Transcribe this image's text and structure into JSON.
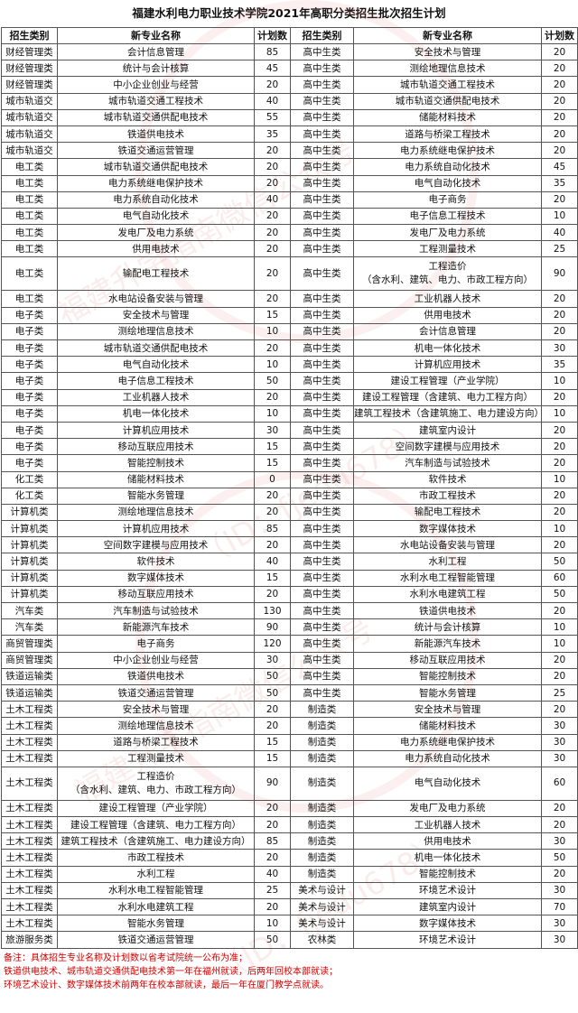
{
  "title": "福建水利电力职业技术学院2021年高职分类招生批次招生计划",
  "headers": [
    "招生类别",
    "新专业名称",
    "计划数",
    "招生类别",
    "新专业名称",
    "计划数"
  ],
  "rows": [
    {
      "c1": "财经管理类",
      "m1": "会计信息管理",
      "n1": "85",
      "c2": "高中生类",
      "m2": "安全技术与管理",
      "n2": "20"
    },
    {
      "c1": "财经管理类",
      "m1": "统计与会计核算",
      "n1": "45",
      "c2": "高中生类",
      "m2": "测绘地理信息技术",
      "n2": "20"
    },
    {
      "c1": "财经管理类",
      "m1": "中小企业创业与经营",
      "n1": "20",
      "c2": "高中生类",
      "m2": "城市轨道交通工程技术",
      "n2": "20"
    },
    {
      "c1": "城市轨道交",
      "m1": "城市轨道交通工程技术",
      "n1": "40",
      "c2": "高中生类",
      "m2": "城市轨道交通供配电技术",
      "n2": "20"
    },
    {
      "c1": "城市轨道交",
      "m1": "城市轨道交通供配电技术",
      "n1": "55",
      "c2": "高中生类",
      "m2": "储能材料技术",
      "n2": "20"
    },
    {
      "c1": "城市轨道交",
      "m1": "铁道供电技术",
      "n1": "35",
      "c2": "高中生类",
      "m2": "道路与桥梁工程技术",
      "n2": "20"
    },
    {
      "c1": "城市轨道交",
      "m1": "铁道交通运营管理",
      "n1": "20",
      "c2": "高中生类",
      "m2": "电力系统继电保护技术",
      "n2": "20"
    },
    {
      "c1": "电工类",
      "m1": "城市轨道交通供配电技术",
      "n1": "20",
      "c2": "高中生类",
      "m2": "电力系统自动化技术",
      "n2": "45"
    },
    {
      "c1": "电工类",
      "m1": "电力系统继电保护技术",
      "n1": "20",
      "c2": "高中生类",
      "m2": "电气自动化技术",
      "n2": "35"
    },
    {
      "c1": "电工类",
      "m1": "电力系统自动化技术",
      "n1": "40",
      "c2": "高中生类",
      "m2": "电子商务",
      "n2": "20"
    },
    {
      "c1": "电工类",
      "m1": "电气自动化技术",
      "n1": "20",
      "c2": "高中生类",
      "m2": "电子信息工程技术",
      "n2": "10"
    },
    {
      "c1": "电工类",
      "m1": "发电厂及电力系统",
      "n1": "20",
      "c2": "高中生类",
      "m2": "发电厂及电力系统",
      "n2": "40"
    },
    {
      "c1": "电工类",
      "m1": "供用电技术",
      "n1": "20",
      "c2": "高中生类",
      "m2": "工程测量技术",
      "n2": "25"
    },
    {
      "c1": "电工类",
      "m1": "输配电工程技术",
      "n1": "20",
      "c2": "高中生类",
      "m2": "工程造价\n（含水利、建筑、电力、市政工程方向）",
      "n2": "90",
      "tall": true
    },
    {
      "c1": "电工类",
      "m1": "水电站设备安装与管理",
      "n1": "20",
      "c2": "高中生类",
      "m2": "工业机器人技术",
      "n2": "20"
    },
    {
      "c1": "电子类",
      "m1": "安全技术与管理",
      "n1": "15",
      "c2": "高中生类",
      "m2": "供用电技术",
      "n2": "20"
    },
    {
      "c1": "电子类",
      "m1": "测绘地理信息技术",
      "n1": "10",
      "c2": "高中生类",
      "m2": "会计信息管理",
      "n2": "20"
    },
    {
      "c1": "电子类",
      "m1": "城市轨道交通供配电技术",
      "n1": "20",
      "c2": "高中生类",
      "m2": "机电一体化技术",
      "n2": "30"
    },
    {
      "c1": "电子类",
      "m1": "电气自动化技术",
      "n1": "10",
      "c2": "高中生类",
      "m2": "计算机应用技术",
      "n2": "35"
    },
    {
      "c1": "电子类",
      "m1": "电子信息工程技术",
      "n1": "50",
      "c2": "高中生类",
      "m2": "建设工程管理（产业学院）",
      "n2": "10"
    },
    {
      "c1": "电子类",
      "m1": "工业机器人技术",
      "n1": "20",
      "c2": "高中生类",
      "m2": "建设工程管理（含建筑、电力工程方向）",
      "n2": "20"
    },
    {
      "c1": "电子类",
      "m1": "机电一体化技术",
      "n1": "10",
      "c2": "高中生类",
      "m2": "建筑工程技术（含建筑施工、电力建设方向）",
      "n2": "10"
    },
    {
      "c1": "电子类",
      "m1": "计算机应用技术",
      "n1": "30",
      "c2": "高中生类",
      "m2": "建筑室内设计",
      "n2": "20"
    },
    {
      "c1": "电子类",
      "m1": "移动互联应用技术",
      "n1": "15",
      "c2": "高中生类",
      "m2": "空间数字建模与应用技术",
      "n2": "20"
    },
    {
      "c1": "电子类",
      "m1": "智能控制技术",
      "n1": "15",
      "c2": "高中生类",
      "m2": "汽车制造与试验技术",
      "n2": "20"
    },
    {
      "c1": "化工类",
      "m1": "储能材料技术",
      "n1": "0",
      "c2": "高中生类",
      "m2": "软件技术",
      "n2": "10"
    },
    {
      "c1": "化工类",
      "m1": "智能水务管理",
      "n1": "20",
      "c2": "高中生类",
      "m2": "市政工程技术",
      "n2": "20"
    },
    {
      "c1": "计算机类",
      "m1": "测绘地理信息技术",
      "n1": "20",
      "c2": "高中生类",
      "m2": "输配电工程技术",
      "n2": "20"
    },
    {
      "c1": "计算机类",
      "m1": "计算机应用技术",
      "n1": "85",
      "c2": "高中生类",
      "m2": "数字媒体技术",
      "n2": "10"
    },
    {
      "c1": "计算机类",
      "m1": "空间数字建模与应用技术",
      "n1": "20",
      "c2": "高中生类",
      "m2": "水电站设备安装与管理",
      "n2": "20"
    },
    {
      "c1": "计算机类",
      "m1": "软件技术",
      "n1": "40",
      "c2": "高中生类",
      "m2": "水利工程",
      "n2": "50"
    },
    {
      "c1": "计算机类",
      "m1": "数字媒体技术",
      "n1": "15",
      "c2": "高中生类",
      "m2": "水利水电工程智能管理",
      "n2": "60"
    },
    {
      "c1": "计算机类",
      "m1": "移动互联应用技术",
      "n1": "20",
      "c2": "高中生类",
      "m2": "水利水电建筑工程",
      "n2": "50"
    },
    {
      "c1": "汽车类",
      "m1": "汽车制造与试验技术",
      "n1": "130",
      "c2": "高中生类",
      "m2": "铁道供电技术",
      "n2": "20"
    },
    {
      "c1": "汽车类",
      "m1": "新能源汽车技术",
      "n1": "90",
      "c2": "高中生类",
      "m2": "统计与会计核算",
      "n2": "10"
    },
    {
      "c1": "商贸管理类",
      "m1": "电子商务",
      "n1": "120",
      "c2": "高中生类",
      "m2": "新能源汽车技术",
      "n2": "10"
    },
    {
      "c1": "商贸管理类",
      "m1": "中小企业创业与经营",
      "n1": "30",
      "c2": "高中生类",
      "m2": "移动互联应用技术",
      "n2": "20"
    },
    {
      "c1": "铁道运输类",
      "m1": "铁道供电技术",
      "n1": "50",
      "c2": "高中生类",
      "m2": "智能控制技术",
      "n2": "20"
    },
    {
      "c1": "铁道运输类",
      "m1": "铁道交通运营管理",
      "n1": "50",
      "c2": "高中生类",
      "m2": "智能水务管理",
      "n2": "25"
    },
    {
      "c1": "土木工程类",
      "m1": "安全技术与管理",
      "n1": "20",
      "c2": "制造类",
      "m2": "安全技术与管理",
      "n2": "20"
    },
    {
      "c1": "土木工程类",
      "m1": "测绘地理信息技术",
      "n1": "20",
      "c2": "制造类",
      "m2": "储能材料技术",
      "n2": "30"
    },
    {
      "c1": "土木工程类",
      "m1": "道路与桥梁工程技术",
      "n1": "15",
      "c2": "制造类",
      "m2": "电力系统继电保护技术",
      "n2": "30"
    },
    {
      "c1": "土木工程类",
      "m1": "工程测量技术",
      "n1": "15",
      "c2": "制造类",
      "m2": "电力系统自动化技术",
      "n2": "30"
    },
    {
      "c1": "土木工程类",
      "m1": "工程造价\n（含水利、建筑、电力、市政工程方向）",
      "n1": "90",
      "c2": "制造类",
      "m2": "电气自动化技术",
      "n2": "60",
      "tall": true
    },
    {
      "c1": "土木工程类",
      "m1": "建设工程管理（产业学院）",
      "n1": "20",
      "c2": "制造类",
      "m2": "发电厂及电力系统",
      "n2": "20"
    },
    {
      "c1": "土木工程类",
      "m1": "建设工程管理（含建筑、电力工程方向）",
      "n1": "20",
      "c2": "制造类",
      "m2": "工业机器人技术",
      "n2": "20"
    },
    {
      "c1": "土木工程类",
      "m1": "建筑工程技术（含建筑施工、电力建设方向）",
      "n1": "85",
      "c2": "制造类",
      "m2": "供用电技术",
      "n2": "30"
    },
    {
      "c1": "土木工程类",
      "m1": "市政工程技术",
      "n1": "20",
      "c2": "制造类",
      "m2": "机电一体化技术",
      "n2": "50"
    },
    {
      "c1": "土木工程类",
      "m1": "水利工程",
      "n1": "40",
      "c2": "制造类",
      "m2": "智能控制技术",
      "n2": "20"
    },
    {
      "c1": "土木工程类",
      "m1": "水利水电工程智能管理",
      "n1": "25",
      "c2": "美术与设计",
      "m2": "环境艺术设计",
      "n2": "30"
    },
    {
      "c1": "土木工程类",
      "m1": "水利水电建筑工程",
      "n1": "20",
      "c2": "美术与设计",
      "m2": "建筑室内设计",
      "n2": "70"
    },
    {
      "c1": "土木工程类",
      "m1": "智能水务管理",
      "n1": "10",
      "c2": "美术与设计",
      "m2": "数字媒体技术",
      "n2": "30"
    },
    {
      "c1": "旅游服务类",
      "m1": "铁道交通运营管理",
      "n1": "50",
      "c2": "农林类",
      "m2": "环境艺术设计",
      "n2": "30"
    }
  ],
  "notes": [
    "备注：具体招生专业名称及计划数以省考试院统一公布为准；",
    "铁道供电技术、城市轨道交通供配电技术第一年在福州就读，后两年回校本部就读；",
    "环境艺术设计、数字媒体技术前两年在校本部就读，最后一年在厦门教学点就读。"
  ],
  "watermark": {
    "line1": "福建升学指南微信公众号",
    "line2": "（ID：fjedu678）",
    "color": "#e07878"
  }
}
